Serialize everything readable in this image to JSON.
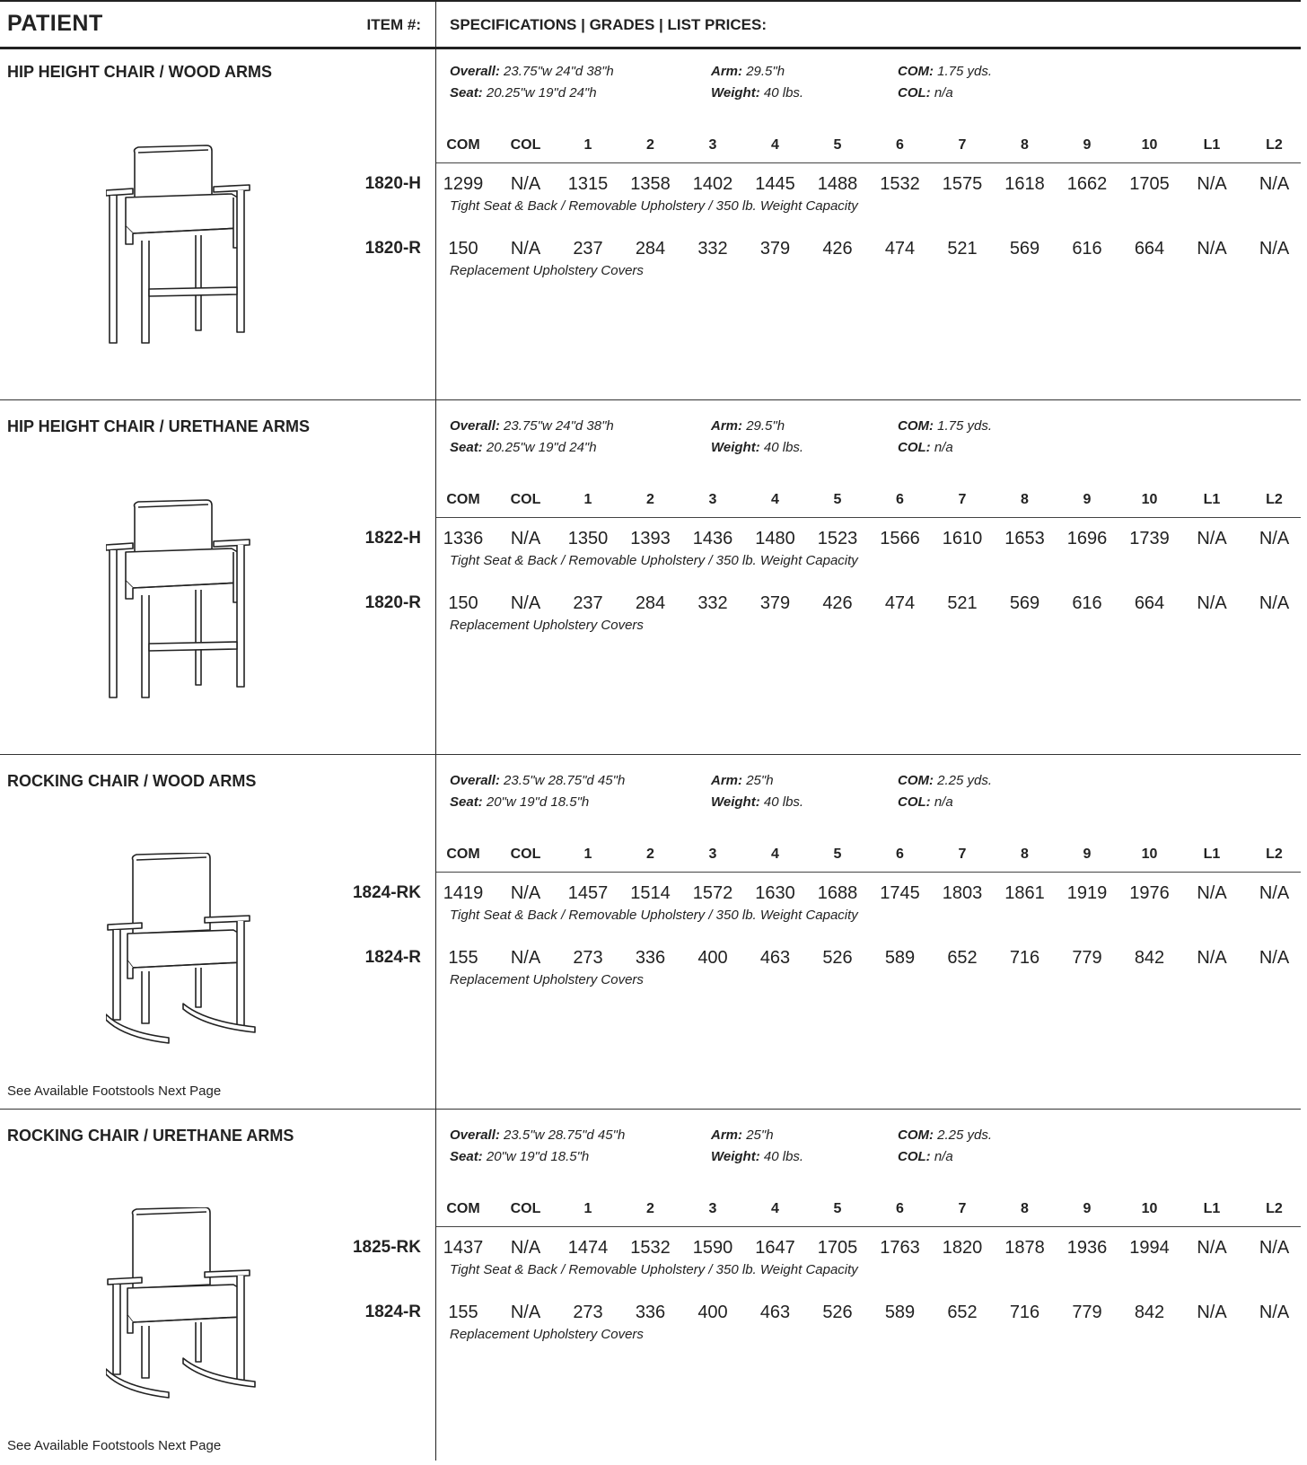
{
  "header": {
    "patient": "PATIENT",
    "item": "ITEM #:",
    "specs": "SPECIFICATIONS  |  GRADES  |  LIST PRICES:"
  },
  "grade_columns": [
    "COM",
    "COL",
    "1",
    "2",
    "3",
    "4",
    "5",
    "6",
    "7",
    "8",
    "9",
    "10",
    "L1",
    "L2"
  ],
  "sections": [
    {
      "title": "HIP HEIGHT CHAIR / WOOD ARMS",
      "overall": "23.75\"w  24\"d  38\"h",
      "seat": "20.25\"w  19\"d  24\"h",
      "arm": "29.5\"h",
      "weight": "40 lbs.",
      "com": "1.75 yds.",
      "col": "n/a",
      "items": [
        {
          "item": "1820-H",
          "prices": [
            "1299",
            "N/A",
            "1315",
            "1358",
            "1402",
            "1445",
            "1488",
            "1532",
            "1575",
            "1618",
            "1662",
            "1705",
            "N/A",
            "N/A"
          ],
          "note": "Tight Seat & Back / Removable Upholstery / 350 lb. Weight Capacity"
        },
        {
          "item": "1820-R",
          "prices": [
            "150",
            "N/A",
            "237",
            "284",
            "332",
            "379",
            "426",
            "474",
            "521",
            "569",
            "616",
            "664",
            "N/A",
            "N/A"
          ],
          "note": "Replacement Upholstery Covers"
        }
      ],
      "footnote": ""
    },
    {
      "title": "HIP HEIGHT CHAIR / URETHANE ARMS",
      "overall": "23.75\"w  24\"d  38\"h",
      "seat": "20.25\"w  19\"d  24\"h",
      "arm": "29.5\"h",
      "weight": "40 lbs.",
      "com": "1.75 yds.",
      "col": "n/a",
      "items": [
        {
          "item": "1822-H",
          "prices": [
            "1336",
            "N/A",
            "1350",
            "1393",
            "1436",
            "1480",
            "1523",
            "1566",
            "1610",
            "1653",
            "1696",
            "1739",
            "N/A",
            "N/A"
          ],
          "note": "Tight Seat & Back / Removable Upholstery / 350 lb. Weight Capacity"
        },
        {
          "item": "1820-R",
          "prices": [
            "150",
            "N/A",
            "237",
            "284",
            "332",
            "379",
            "426",
            "474",
            "521",
            "569",
            "616",
            "664",
            "N/A",
            "N/A"
          ],
          "note": "Replacement Upholstery Covers"
        }
      ],
      "footnote": ""
    },
    {
      "title": "ROCKING CHAIR / WOOD ARMS",
      "overall": "23.5\"w  28.75\"d  45\"h",
      "seat": "20\"w  19\"d  18.5\"h",
      "arm": "25\"h",
      "weight": "40 lbs.",
      "com": "2.25 yds.",
      "col": "n/a",
      "items": [
        {
          "item": "1824-RK",
          "prices": [
            "1419",
            "N/A",
            "1457",
            "1514",
            "1572",
            "1630",
            "1688",
            "1745",
            "1803",
            "1861",
            "1919",
            "1976",
            "N/A",
            "N/A"
          ],
          "note": "Tight Seat & Back / Removable Upholstery / 350 lb. Weight Capacity"
        },
        {
          "item": "1824-R",
          "prices": [
            "155",
            "N/A",
            "273",
            "336",
            "400",
            "463",
            "526",
            "589",
            "652",
            "716",
            "779",
            "842",
            "N/A",
            "N/A"
          ],
          "note": "Replacement Upholstery Covers"
        }
      ],
      "footnote": "See Available Footstools Next Page"
    },
    {
      "title": "ROCKING CHAIR / URETHANE ARMS",
      "overall": "23.5\"w  28.75\"d  45\"h",
      "seat": "20\"w  19\"d  18.5\"h",
      "arm": "25\"h",
      "weight": "40 lbs.",
      "com": "2.25 yds.",
      "col": "n/a",
      "items": [
        {
          "item": "1825-RK",
          "prices": [
            "1437",
            "N/A",
            "1474",
            "1532",
            "1590",
            "1647",
            "1705",
            "1763",
            "1820",
            "1878",
            "1936",
            "1994",
            "N/A",
            "N/A"
          ],
          "note": "Tight Seat & Back / Removable Upholstery / 350 lb. Weight Capacity"
        },
        {
          "item": "1824-R",
          "prices": [
            "155",
            "N/A",
            "273",
            "336",
            "400",
            "463",
            "526",
            "589",
            "652",
            "716",
            "779",
            "842",
            "N/A",
            "N/A"
          ],
          "note": "Replacement Upholstery Covers"
        }
      ],
      "footnote": "See Available Footstools Next Page"
    }
  ],
  "labels": {
    "overall": "Overall:",
    "seat": "Seat:",
    "arm": "Arm:",
    "weight": "Weight:",
    "com": "COM:",
    "col": "COL:"
  }
}
